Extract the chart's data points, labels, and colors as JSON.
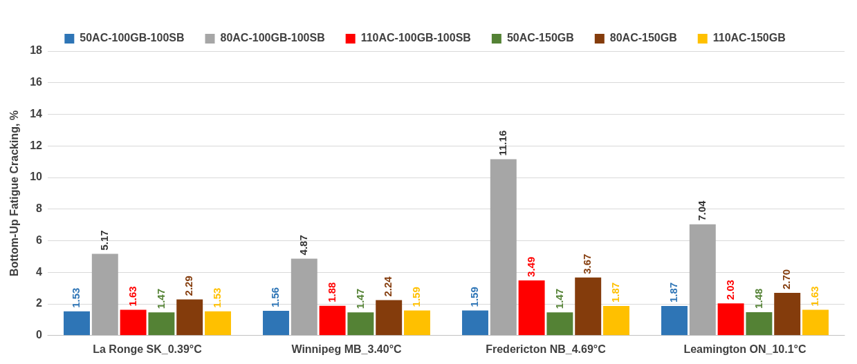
{
  "chart_data": {
    "type": "bar",
    "ylabel": "Bottom-Up Fatigue Cracking, %",
    "categories": [
      "La Ronge SK_0.39°C",
      "Winnipeg MB_3.40°C",
      "Fredericton NB_4.69°C",
      "Leamington ON_10.1°C"
    ],
    "series": [
      {
        "name": "50AC-100GB-100SB",
        "color": "#2e75b6",
        "values": [
          1.53,
          1.56,
          1.59,
          1.87
        ],
        "value_labels": [
          "1.53",
          "1.56",
          "1.59",
          "1.87"
        ]
      },
      {
        "name": "80AC-100GB-100SB",
        "color": "#a6a6a6",
        "values": [
          5.17,
          4.87,
          11.16,
          7.04
        ],
        "value_labels": [
          "5.17",
          "4.87",
          "11.16",
          "7.04"
        ]
      },
      {
        "name": "110AC-100GB-100SB",
        "color": "#ff0000",
        "values": [
          1.63,
          1.88,
          3.49,
          2.03
        ],
        "value_labels": [
          "1.63",
          "1.88",
          "3.49",
          "2.03"
        ]
      },
      {
        "name": "50AC-150GB",
        "color": "#548235",
        "values": [
          1.47,
          1.47,
          1.47,
          1.48
        ],
        "value_labels": [
          "1.47",
          "1.47",
          "1.47",
          "1.48"
        ]
      },
      {
        "name": "80AC-150GB",
        "color": "#843c0c",
        "values": [
          2.29,
          2.24,
          3.67,
          2.7
        ],
        "value_labels": [
          "2.29",
          "2.24",
          "3.67",
          "2.70"
        ]
      },
      {
        "name": "110AC-150GB",
        "color": "#ffc000",
        "values": [
          1.53,
          1.59,
          1.87,
          1.63
        ],
        "value_labels": [
          "1.53",
          "1.59",
          "1.87",
          "1.63"
        ]
      }
    ],
    "ylim": [
      0,
      18
    ],
    "yticks": [
      0,
      2,
      4,
      6,
      8,
      10,
      12,
      14,
      16,
      18
    ],
    "grid": "y",
    "legend": "top"
  }
}
